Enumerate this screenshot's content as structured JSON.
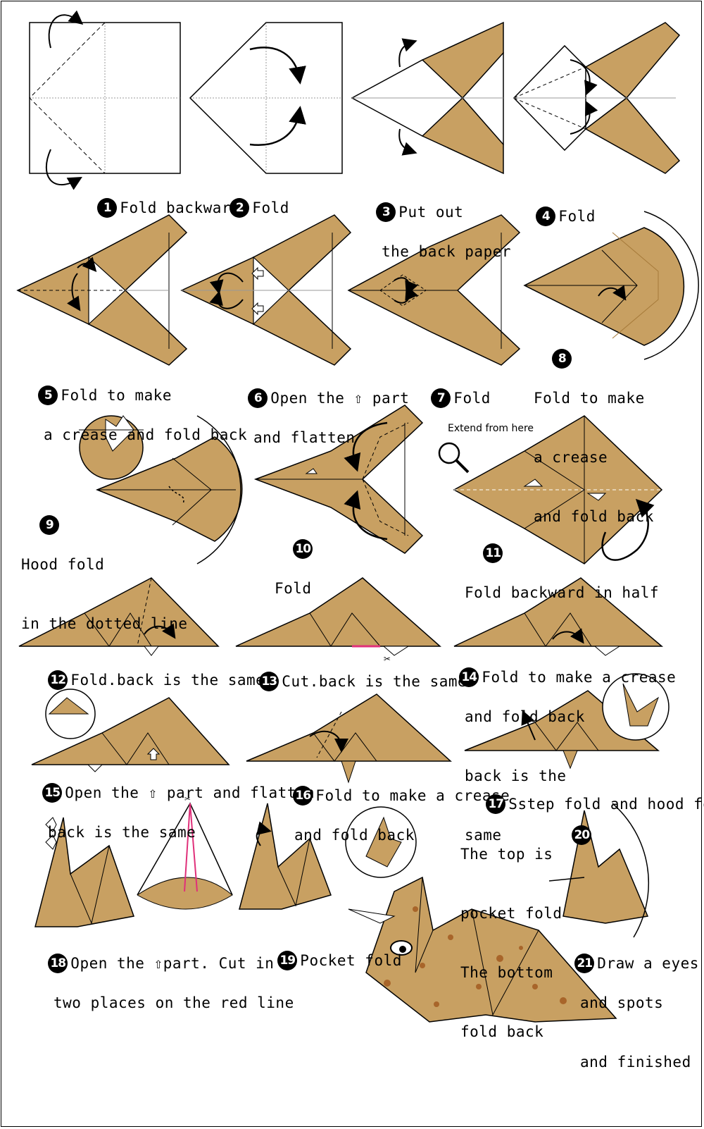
{
  "colors": {
    "paper": "#c8a062",
    "paper_dark": "#a67a3a",
    "stroke": "#000000",
    "crease": "#8a8a8a",
    "cut_line": "#e0307a",
    "spots": "#a8652a"
  },
  "steps": [
    {
      "num": "1",
      "lines": [
        "Fold backward"
      ]
    },
    {
      "num": "2",
      "lines": [
        "Fold"
      ]
    },
    {
      "num": "3",
      "lines": [
        "Put out",
        "the back paper"
      ]
    },
    {
      "num": "4",
      "lines": [
        "Fold"
      ]
    },
    {
      "num": "5",
      "lines": [
        "Fold to make",
        "a crease and fold back"
      ]
    },
    {
      "num": "6",
      "lines": [
        "Open the ⇧ part",
        "and flatten"
      ]
    },
    {
      "num": "7",
      "lines": [
        "Fold"
      ]
    },
    {
      "num": "8",
      "lines": [
        "Fold to make",
        "a crease",
        "and fold back"
      ]
    },
    {
      "num": "9",
      "lines": [
        "Hood fold",
        "in the dotted line"
      ]
    },
    {
      "num": "10",
      "lines": [
        "Fold"
      ]
    },
    {
      "num": "11",
      "lines": [
        "Fold backward in half"
      ]
    },
    {
      "num": "12",
      "lines": [
        "Fold.back is the same"
      ]
    },
    {
      "num": "13",
      "lines": [
        "Cut.back is the same"
      ]
    },
    {
      "num": "14",
      "lines": [
        "Fold to make a crease",
        "and fold back",
        "back is the",
        "same"
      ]
    },
    {
      "num": "15",
      "lines": [
        "Open the ⇧ part and flatten",
        "back is the same"
      ]
    },
    {
      "num": "16",
      "lines": [
        "Fold to make a crease",
        "and fold back"
      ]
    },
    {
      "num": "17",
      "lines": [
        "Sstep fold and hood fold"
      ]
    },
    {
      "num": "18",
      "lines": [
        "Open the ⇧part. Cut in",
        "two places on the red line"
      ]
    },
    {
      "num": "19",
      "lines": [
        "Pocket fold"
      ]
    },
    {
      "num": "20",
      "lines": [
        "The top is",
        "pocket fold",
        "The bottom",
        "fold back"
      ]
    },
    {
      "num": "21",
      "lines": [
        "Draw a eyes",
        "and spots",
        "and finished"
      ]
    }
  ],
  "notes": {
    "extend": "Extend from here"
  },
  "icons": [
    "curved-arrow-icon",
    "magnifier-icon",
    "scissors-icon",
    "hollow-up-arrow-icon"
  ]
}
